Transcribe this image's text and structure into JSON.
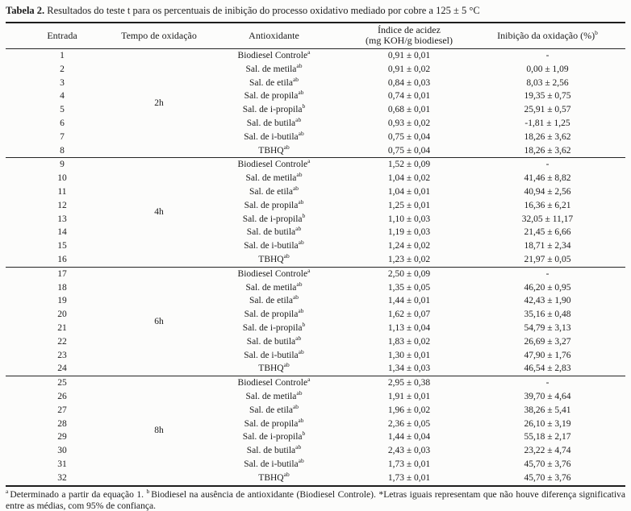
{
  "caption": {
    "label": "Tabela 2.",
    "text": " Resultados do teste t para os percentuais de inibição do processo oxidativo mediado por cobre a 125 ± 5 °C"
  },
  "table": {
    "headers": {
      "entrada": "Entrada",
      "tempo": "Tempo de oxidação",
      "antioxidante": "Antioxidante",
      "acidez_line1": "Índice de acidez",
      "acidez_line2": "(mg KOH/g biodiesel)",
      "inibicao": "Inibição da oxidação (%)",
      "inibicao_sup": "b"
    },
    "groups": [
      {
        "tempo": "2h",
        "rows": [
          {
            "entrada": "1",
            "antioxidante": "Biodiesel Controle",
            "sup": "a",
            "acidez": "0,91 ± 0,01",
            "inibicao": "-"
          },
          {
            "entrada": "2",
            "antioxidante": "Sal. de metila",
            "sup": "ab",
            "acidez": "0,91 ± 0,02",
            "inibicao": "0,00 ± 1,09"
          },
          {
            "entrada": "3",
            "antioxidante": "Sal. de etila",
            "sup": "ab",
            "acidez": "0,84 ± 0,03",
            "inibicao": "8,03 ± 2,56"
          },
          {
            "entrada": "4",
            "antioxidante": "Sal. de propila",
            "sup": "ab",
            "acidez": "0,74 ± 0,01",
            "inibicao": "19,35 ± 0,75"
          },
          {
            "entrada": "5",
            "antioxidante": "Sal. de i-propila",
            "sup": "b",
            "acidez": "0,68 ± 0,01",
            "inibicao": "25,91 ± 0,57"
          },
          {
            "entrada": "6",
            "antioxidante": "Sal. de butila",
            "sup": "ab",
            "acidez": "0,93 ± 0,02",
            "inibicao": "-1,81 ± 1,25"
          },
          {
            "entrada": "7",
            "antioxidante": "Sal. de i-butila",
            "sup": "ab",
            "acidez": "0,75 ± 0,04",
            "inibicao": "18,26 ± 3,62"
          },
          {
            "entrada": "8",
            "antioxidante": "TBHQ",
            "sup": "ab",
            "acidez": "0,75 ± 0,04",
            "inibicao": "18,26 ± 3,62"
          }
        ]
      },
      {
        "tempo": "4h",
        "rows": [
          {
            "entrada": "9",
            "antioxidante": "Biodiesel Controle",
            "sup": "a",
            "acidez": "1,52 ± 0,09",
            "inibicao": "-"
          },
          {
            "entrada": "10",
            "antioxidante": "Sal. de metila",
            "sup": "ab",
            "acidez": "1,04 ± 0,02",
            "inibicao": "41,46 ± 8,82"
          },
          {
            "entrada": "11",
            "antioxidante": "Sal. de etila",
            "sup": "ab",
            "acidez": "1,04 ± 0,01",
            "inibicao": "40,94 ± 2,56"
          },
          {
            "entrada": "12",
            "antioxidante": "Sal. de propila",
            "sup": "ab",
            "acidez": "1,25 ± 0,01",
            "inibicao": "16,36 ± 6,21"
          },
          {
            "entrada": "13",
            "antioxidante": "Sal. de i-propila",
            "sup": "b",
            "acidez": "1,10 ± 0,03",
            "inibicao": "32,05 ± 11,17"
          },
          {
            "entrada": "14",
            "antioxidante": "Sal. de butila",
            "sup": "ab",
            "acidez": "1,19 ± 0,03",
            "inibicao": "21,45 ± 6,66"
          },
          {
            "entrada": "15",
            "antioxidante": "Sal. de i-butila",
            "sup": "ab",
            "acidez": "1,24 ± 0,02",
            "inibicao": "18,71 ± 2,34"
          },
          {
            "entrada": "16",
            "antioxidante": "TBHQ",
            "sup": "ab",
            "acidez": "1,23 ± 0,02",
            "inibicao": "21,97 ± 0,05"
          }
        ]
      },
      {
        "tempo": "6h",
        "rows": [
          {
            "entrada": "17",
            "antioxidante": "Biodiesel Controle",
            "sup": "a",
            "acidez": "2,50 ± 0,09",
            "inibicao": "-"
          },
          {
            "entrada": "18",
            "antioxidante": "Sal. de metila",
            "sup": "ab",
            "acidez": "1,35 ± 0,05",
            "inibicao": "46,20 ± 0,95"
          },
          {
            "entrada": "19",
            "antioxidante": "Sal. de etila",
            "sup": "ab",
            "acidez": "1,44 ± 0,01",
            "inibicao": "42,43 ± 1,90"
          },
          {
            "entrada": "20",
            "antioxidante": "Sal. de propila",
            "sup": "ab",
            "acidez": "1,62 ± 0,07",
            "inibicao": "35,16 ± 0,48"
          },
          {
            "entrada": "21",
            "antioxidante": "Sal. de i-propila",
            "sup": "b",
            "acidez": "1,13 ± 0,04",
            "inibicao": "54,79 ± 3,13"
          },
          {
            "entrada": "22",
            "antioxidante": "Sal. de butila",
            "sup": "ab",
            "acidez": "1,83 ± 0,02",
            "inibicao": "26,69 ± 3,27"
          },
          {
            "entrada": "23",
            "antioxidante": "Sal. de i-butila",
            "sup": "ab",
            "acidez": "1,30 ± 0,01",
            "inibicao": "47,90 ± 1,76"
          },
          {
            "entrada": "24",
            "antioxidante": "TBHQ",
            "sup": "ab",
            "acidez": "1,34 ± 0,03",
            "inibicao": "46,54 ± 2,83"
          }
        ]
      },
      {
        "tempo": "8h",
        "rows": [
          {
            "entrada": "25",
            "antioxidante": "Biodiesel Controle",
            "sup": "a",
            "acidez": "2,95 ± 0,38",
            "inibicao": "-"
          },
          {
            "entrada": "26",
            "antioxidante": "Sal. de metila",
            "sup": "ab",
            "acidez": "1,91 ± 0,01",
            "inibicao": "39,70 ± 4,64"
          },
          {
            "entrada": "27",
            "antioxidante": "Sal. de etila",
            "sup": "ab",
            "acidez": "1,96 ± 0,02",
            "inibicao": "38,26 ± 5,41"
          },
          {
            "entrada": "28",
            "antioxidante": "Sal. de propila",
            "sup": "ab",
            "acidez": "2,36 ± 0,05",
            "inibicao": "26,10 ± 3,19"
          },
          {
            "entrada": "29",
            "antioxidante": "Sal. de i-propila",
            "sup": "b",
            "acidez": "1,44 ± 0,04",
            "inibicao": "55,18 ± 2,17"
          },
          {
            "entrada": "30",
            "antioxidante": "Sal. de butila",
            "sup": "ab",
            "acidez": "2,43 ± 0,03",
            "inibicao": "23,22 ± 4,74"
          },
          {
            "entrada": "31",
            "antioxidante": "Sal. de i-butila",
            "sup": "ab",
            "acidez": "1,73 ± 0,01",
            "inibicao": "45,70 ± 3,76"
          },
          {
            "entrada": "32",
            "antioxidante": "TBHQ",
            "sup": "ab",
            "acidez": "1,73 ± 0,01",
            "inibicao": "45,70 ± 3,76"
          }
        ]
      }
    ]
  },
  "footnote": {
    "parts": [
      {
        "marker": "a",
        "text": "Determinado a partir da equação 1. "
      },
      {
        "marker": "b",
        "text": "Biodiesel na ausência de antioxidante (Biodiesel Controle). "
      },
      {
        "marker": "*",
        "text": "Letras iguais representam que não houve diferença significativa entre as médias, com 95% de confiança."
      }
    ]
  },
  "colors": {
    "text": "#1c1c1c",
    "rule": "#1d1d1d",
    "background": "#fcfcfb"
  }
}
